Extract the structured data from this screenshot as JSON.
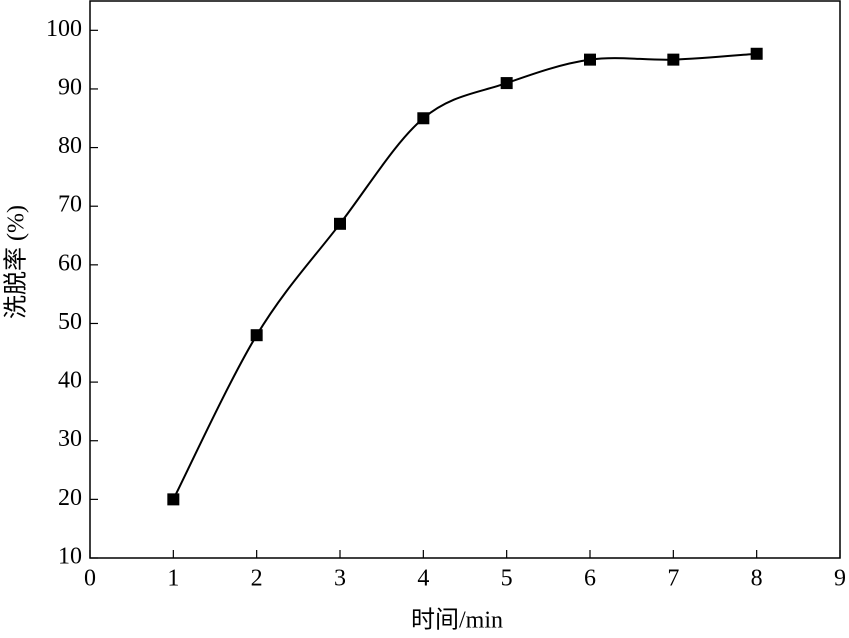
{
  "chart_data": {
    "type": "line",
    "x_label": "时间/min",
    "y_label": "洗脱率 (%)",
    "x": [
      1,
      2,
      3,
      4,
      5,
      6,
      7,
      8
    ],
    "series": [
      {
        "color": "#000000",
        "values": [
          20,
          48,
          67,
          85,
          91,
          95,
          95,
          96
        ]
      }
    ],
    "xlim": [
      0,
      9
    ],
    "xticks": [
      0,
      1,
      2,
      3,
      4,
      5,
      6,
      7,
      8,
      9
    ],
    "ylim": [
      10,
      105
    ],
    "yticks": [
      10,
      20,
      30,
      40,
      50,
      60,
      70,
      80,
      90,
      100
    ],
    "smooth": true,
    "marker": "square"
  }
}
